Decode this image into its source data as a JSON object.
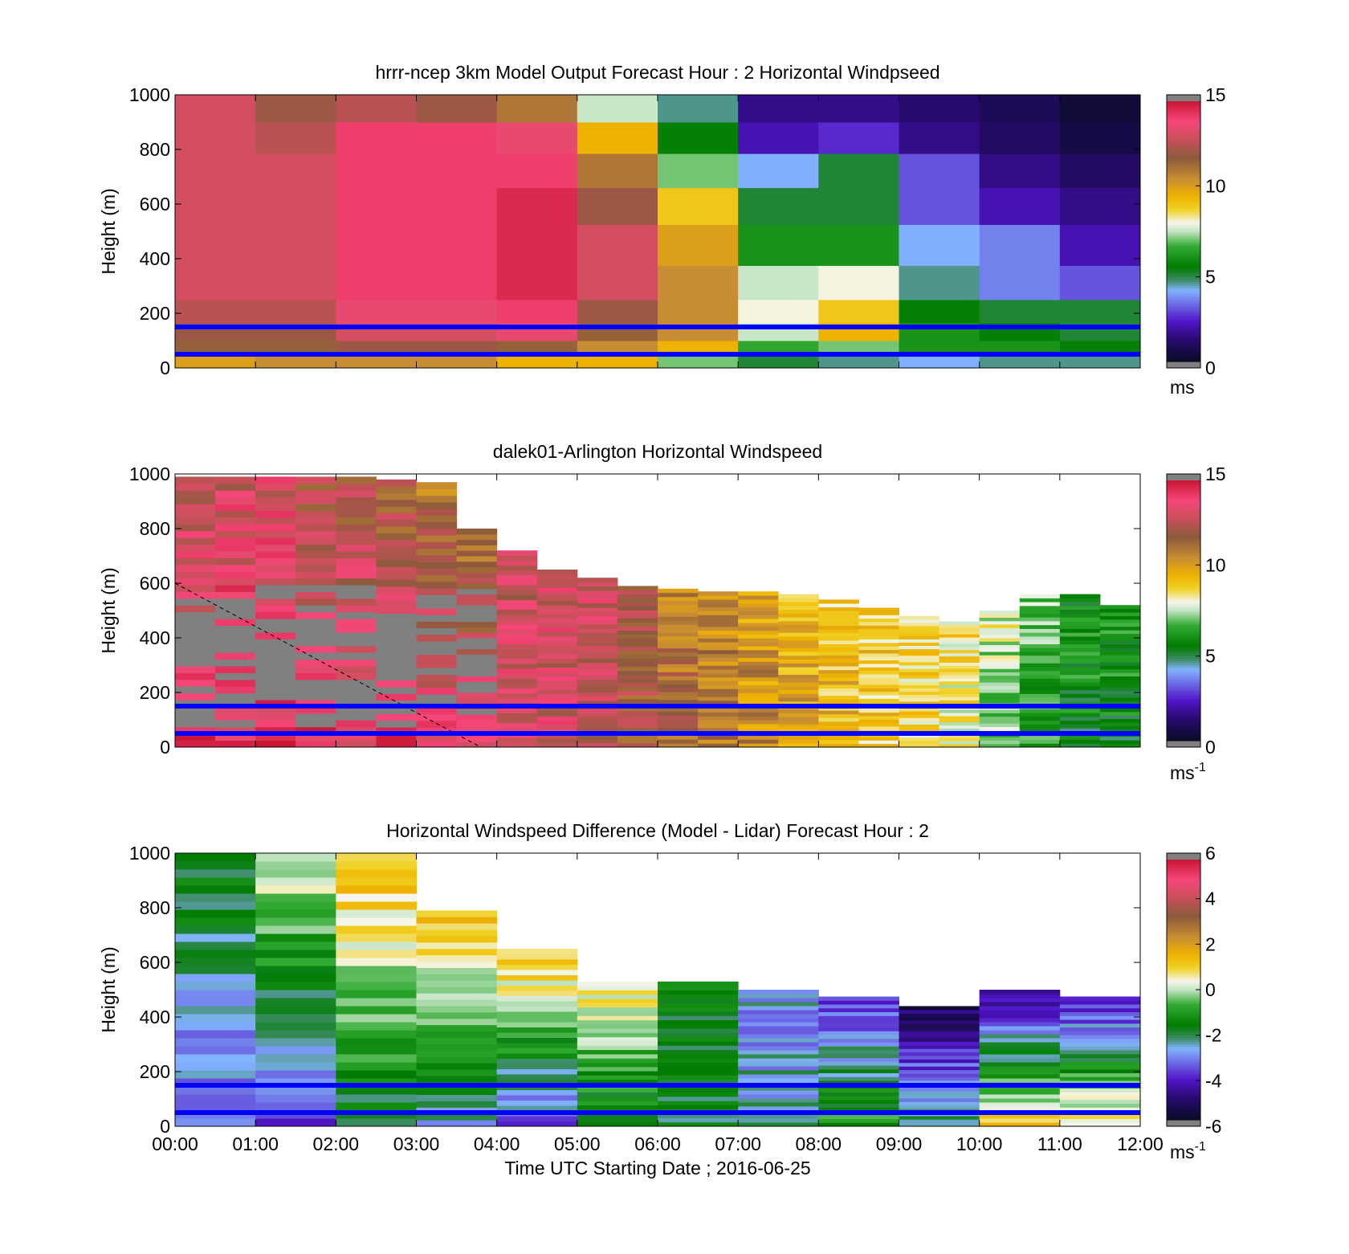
{
  "figure": {
    "xlabel": "Time UTC  Starting Date ; 2016-06-25",
    "x_ticks": [
      "00:00",
      "01:00",
      "02:00",
      "03:00",
      "04:00",
      "05:00",
      "06:00",
      "07:00",
      "08:00",
      "09:00",
      "10:00",
      "11:00",
      "12:00"
    ]
  },
  "chart_data": [
    {
      "type": "heatmap",
      "title": "hrrr-ncep 3km Model Output   Forecast Hour : 2 Horizontal Windpseed",
      "ylabel": "Height (m)",
      "xlabel": "",
      "xlim": [
        0,
        12
      ],
      "ylim": [
        0,
        1000
      ],
      "y_ticks": [
        "0",
        "200",
        "400",
        "600",
        "800",
        "1000"
      ],
      "colorbar": {
        "min": 0,
        "max": 15,
        "ticks": [
          "0",
          "5",
          "10",
          "15"
        ],
        "unit": "ms",
        "unit_sup": ""
      },
      "reference_lines_m": [
        150,
        50
      ],
      "reference_line_color": "#0000ff",
      "column_hours": [
        0,
        1,
        2,
        3,
        4,
        5,
        6,
        7,
        8,
        9,
        10,
        11
      ],
      "height_levels_m": [
        25,
        70,
        130,
        200,
        300,
        450,
        600,
        720,
        850,
        950
      ],
      "windspeed_ms": [
        [
          10,
          10.5,
          10.5,
          10.5,
          9.5,
          9.5,
          7,
          5,
          4.5,
          4,
          4.5,
          4.5
        ],
        [
          11.5,
          11.5,
          12,
          12,
          11.5,
          10.5,
          9.5,
          6.5,
          7,
          6,
          6,
          5.5
        ],
        [
          12,
          12,
          13,
          13,
          13.5,
          11.5,
          10.5,
          7.5,
          9.5,
          6,
          5.5,
          5
        ],
        [
          12.5,
          12.5,
          13.5,
          13.5,
          14,
          12,
          10.5,
          8,
          9,
          5.5,
          5,
          5
        ],
        [
          13,
          13,
          14,
          14,
          14.5,
          13,
          10.5,
          7.5,
          8,
          4.5,
          3.5,
          3
        ],
        [
          13,
          13,
          14,
          14,
          14.5,
          13,
          10,
          6,
          6,
          4,
          3.5,
          2
        ],
        [
          13,
          13,
          14,
          14,
          14.5,
          12,
          9,
          5,
          5,
          3,
          2,
          1.5
        ],
        [
          13,
          13,
          14,
          14,
          14,
          11,
          7,
          4,
          5,
          3,
          1.5,
          1
        ],
        [
          13,
          12.5,
          14,
          14,
          13.5,
          9.5,
          5.5,
          2,
          2.5,
          1.5,
          1,
          0.5
        ],
        [
          13,
          12,
          12.5,
          12,
          11,
          7.5,
          4.5,
          1.5,
          1.5,
          1.2,
          0.8,
          0.3
        ]
      ]
    },
    {
      "type": "heatmap",
      "title": "dalek01-Arlington  Horizontal Windspeed",
      "ylabel": "Height (m)",
      "xlabel": "",
      "xlim": [
        0,
        12
      ],
      "ylim": [
        0,
        1000
      ],
      "y_ticks": [
        "0",
        "200",
        "400",
        "600",
        "800",
        "1000"
      ],
      "colorbar": {
        "min": 0,
        "max": 15,
        "ticks": [
          "0",
          "5",
          "10",
          "15"
        ],
        "unit": "ms",
        "unit_sup": "-1"
      },
      "reference_lines_m": [
        150,
        50
      ],
      "reference_line_color": "#0000ff",
      "time_hours": [
        0,
        0.5,
        1,
        1.5,
        2,
        2.5,
        3,
        3.5,
        4,
        4.5,
        5,
        5.5,
        6,
        6.5,
        7,
        7.5,
        8,
        8.5,
        9,
        9.5,
        10,
        10.5,
        11,
        11.5,
        12
      ],
      "profile_top_m": [
        990,
        990,
        990,
        990,
        990,
        980,
        970,
        800,
        720,
        650,
        620,
        590,
        580,
        570,
        570,
        560,
        540,
        510,
        480,
        460,
        500,
        560,
        560,
        520,
        520
      ],
      "surface_speed_ms": [
        14,
        14,
        14,
        14,
        14,
        14,
        14,
        14,
        13.5,
        13,
        12.5,
        12,
        11.5,
        11,
        10.5,
        10,
        9.5,
        9,
        8.5,
        8,
        7,
        6,
        5.5,
        5.5,
        5.5
      ],
      "aloft_speed_ms": [
        12.5,
        13,
        13,
        12,
        12,
        11.5,
        11,
        11,
        12.5,
        13,
        13,
        12,
        11,
        10.5,
        10,
        9.5,
        9,
        9,
        8.5,
        8.5,
        8,
        7,
        6,
        6,
        6
      ]
    },
    {
      "type": "heatmap",
      "title": "Horizontal Windspeed Difference (Model - Lidar) Forecast Hour : 2",
      "ylabel": "Height (m)",
      "xlabel": "Time UTC  Starting Date ; 2016-06-25",
      "xlim": [
        0,
        12
      ],
      "ylim": [
        0,
        1000
      ],
      "y_ticks": [
        "0",
        "200",
        "400",
        "600",
        "800",
        "1000"
      ],
      "colorbar": {
        "min": -6,
        "max": 6,
        "ticks": [
          "-6",
          "-4",
          "-2",
          "0",
          "2",
          "4",
          "6"
        ],
        "unit": "ms",
        "unit_sup": "-1"
      },
      "reference_lines_m": [
        150,
        50
      ],
      "reference_line_color": "#0000ff",
      "column_hours": [
        0,
        1,
        2,
        3,
        4,
        5,
        6,
        7,
        8,
        9,
        10,
        11
      ],
      "column_top_m": [
        1000,
        1000,
        1000,
        790,
        650,
        530,
        530,
        500,
        475,
        440,
        500,
        475
      ],
      "bottom_diff": [
        -3.5,
        -4,
        -2,
        -2.5,
        -3.5,
        -2,
        -2,
        -2.5,
        -1,
        -2,
        1,
        1
      ],
      "top_diff": [
        -1.5,
        0.5,
        1.5,
        1.5,
        1.5,
        0.8,
        -1.5,
        -3,
        -4,
        -5.5,
        -5,
        -4.5
      ]
    }
  ]
}
